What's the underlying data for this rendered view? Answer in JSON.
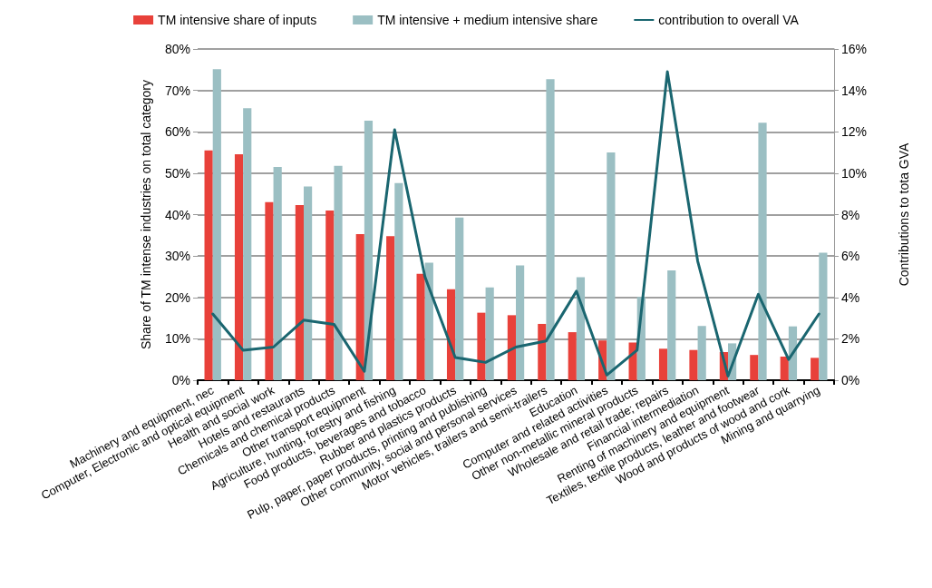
{
  "chart_data": {
    "type": "bar",
    "categories": [
      "Machinery and equipment, nec",
      "Computer, Electronic and optical equipment",
      "Health and social work",
      "Hotels and restaurants",
      "Chemicals and chemical products",
      "Other transport equipment",
      "Agriculture, hunting, forestry and fishing",
      "Food products, beverages and tobacco",
      "Rubber and plastics products",
      "Pulp, paper, paper products, printing and publishing",
      "Other community, social and personal services",
      "Motor vehicles, trailers and semi-trailers",
      "Education",
      "Computer and related activities",
      "Other non-metallic mineral products",
      "Wholesale and retail trade; repairs",
      "Financial intermediation",
      "Renting of machinery and equipment",
      "Textiles, textile products, leather and footwear",
      "Wood and products of wood and cork",
      "Mining and quarrying"
    ],
    "series": [
      {
        "name": "TM intensive share of inputs",
        "color": "#e8413a",
        "values": [
          55.5,
          54.6,
          43.0,
          42.3,
          41.0,
          35.3,
          34.8,
          25.7,
          22.0,
          16.3,
          15.7,
          13.6,
          11.6,
          9.6,
          9.1,
          7.6,
          7.3,
          6.8,
          6.1,
          5.7,
          5.4
        ]
      },
      {
        "name": "TM intensive + medium intensive share",
        "color": "#9bbfc3",
        "values": [
          75.1,
          65.7,
          51.5,
          46.8,
          51.8,
          62.7,
          47.6,
          28.4,
          39.3,
          22.4,
          27.7,
          72.7,
          24.9,
          55.0,
          20.1,
          26.5,
          13.1,
          8.9,
          62.2,
          13.0,
          30.8
        ]
      },
      {
        "name": "contribution to overall VA",
        "type": "line",
        "axis": "y2",
        "color": "#1a6670",
        "values": [
          3.2,
          1.45,
          1.6,
          2.9,
          2.7,
          0.43,
          12.1,
          5.0,
          1.1,
          0.86,
          1.6,
          1.9,
          4.3,
          0.25,
          1.45,
          14.9,
          5.75,
          0.2,
          4.15,
          1.0,
          3.2
        ]
      }
    ],
    "ylabel": "Share of TM intense industries on total category",
    "y2label": "Contributions to tota GVA",
    "ylim": [
      0,
      80
    ],
    "yticks": [
      {
        "value": 0,
        "label": "0%"
      },
      {
        "value": 10,
        "label": "10%"
      },
      {
        "value": 20,
        "label": "20%"
      },
      {
        "value": 30,
        "label": "30%"
      },
      {
        "value": 40,
        "label": "40%"
      },
      {
        "value": 50,
        "label": "50%"
      },
      {
        "value": 60,
        "label": "60%"
      },
      {
        "value": 70,
        "label": "70%"
      },
      {
        "value": 80,
        "label": "80%"
      }
    ],
    "y2lim": [
      0,
      16
    ],
    "y2ticks": [
      {
        "value": 0,
        "label": "0%"
      },
      {
        "value": 2,
        "label": "2%"
      },
      {
        "value": 4,
        "label": "4%"
      },
      {
        "value": 6,
        "label": "6%"
      },
      {
        "value": 8,
        "label": "8%"
      },
      {
        "value": 10,
        "label": "10%"
      },
      {
        "value": 12,
        "label": "12%"
      },
      {
        "value": 14,
        "label": "14%"
      },
      {
        "value": 16,
        "label": "16%"
      }
    ],
    "grid": "y",
    "legend": "top",
    "marker": "none",
    "line_style": "solid"
  }
}
